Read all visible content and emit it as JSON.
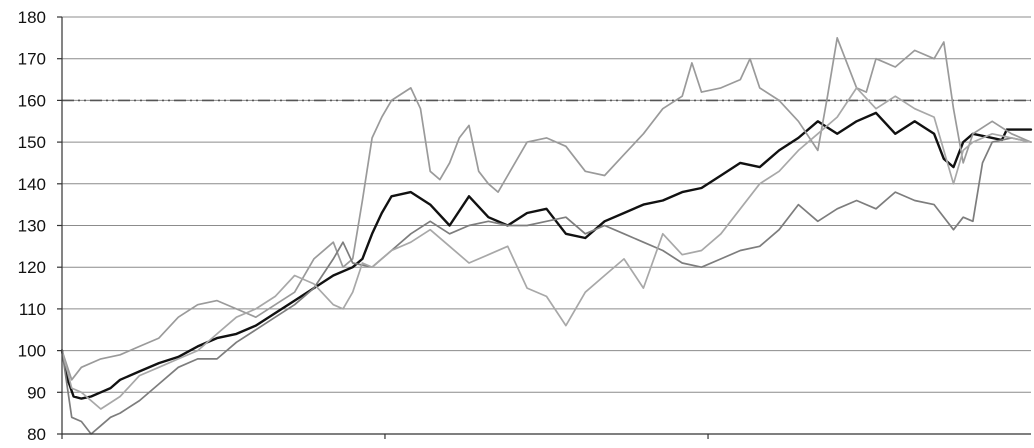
{
  "chart_data": {
    "type": "line",
    "ylim": [
      80,
      180
    ],
    "xlim": [
      0,
      1
    ],
    "ytick_labels": [
      "80",
      "90",
      "100",
      "110",
      "120",
      "130",
      "140",
      "150",
      "160",
      "170",
      "180"
    ],
    "grid": {
      "horizontal": true,
      "vertical": false
    },
    "x_ticks": [
      0,
      0.3333,
      0.6667
    ],
    "reference_line": {
      "y": 160,
      "style": "dash-dot-dot",
      "color": "#555555"
    },
    "series": [
      {
        "style": "thick",
        "color": "#111111",
        "points": [
          [
            0.0,
            100.0
          ],
          [
            0.006,
            93.0
          ],
          [
            0.012,
            89.0
          ],
          [
            0.02,
            88.5
          ],
          [
            0.03,
            89.0
          ],
          [
            0.04,
            90.0
          ],
          [
            0.05,
            91.0
          ],
          [
            0.06,
            93.0
          ],
          [
            0.08,
            95.0
          ],
          [
            0.1,
            97.0
          ],
          [
            0.12,
            98.5
          ],
          [
            0.14,
            101.0
          ],
          [
            0.16,
            103.0
          ],
          [
            0.18,
            104.0
          ],
          [
            0.2,
            106.0
          ],
          [
            0.22,
            109.0
          ],
          [
            0.24,
            112.0
          ],
          [
            0.26,
            115.0
          ],
          [
            0.28,
            118.0
          ],
          [
            0.3,
            120.0
          ],
          [
            0.31,
            122.0
          ],
          [
            0.32,
            128.0
          ],
          [
            0.33,
            133.0
          ],
          [
            0.34,
            137.0
          ],
          [
            0.36,
            138.0
          ],
          [
            0.38,
            135.0
          ],
          [
            0.4,
            130.0
          ],
          [
            0.42,
            137.0
          ],
          [
            0.44,
            132.0
          ],
          [
            0.46,
            130.0
          ],
          [
            0.48,
            133.0
          ],
          [
            0.5,
            134.0
          ],
          [
            0.52,
            128.0
          ],
          [
            0.54,
            127.0
          ],
          [
            0.56,
            131.0
          ],
          [
            0.58,
            133.0
          ],
          [
            0.6,
            135.0
          ],
          [
            0.62,
            136.0
          ],
          [
            0.64,
            138.0
          ],
          [
            0.66,
            139.0
          ],
          [
            0.68,
            142.0
          ],
          [
            0.7,
            145.0
          ],
          [
            0.72,
            144.0
          ],
          [
            0.74,
            148.0
          ],
          [
            0.76,
            151.0
          ],
          [
            0.78,
            155.0
          ],
          [
            0.8,
            152.0
          ],
          [
            0.82,
            155.0
          ],
          [
            0.84,
            157.0
          ],
          [
            0.86,
            152.0
          ],
          [
            0.88,
            155.0
          ],
          [
            0.9,
            152.0
          ],
          [
            0.91,
            146.0
          ],
          [
            0.92,
            144.0
          ],
          [
            0.93,
            150.0
          ],
          [
            0.94,
            152.0
          ],
          [
            0.96,
            151.0
          ],
          [
            0.97,
            150.5
          ],
          [
            0.975,
            153.0
          ],
          [
            1.0,
            153.0
          ]
        ]
      },
      {
        "style": "thin",
        "color": "#9a9a9a",
        "points": [
          [
            0.0,
            100.0
          ],
          [
            0.01,
            93.0
          ],
          [
            0.02,
            96.0
          ],
          [
            0.04,
            98.0
          ],
          [
            0.06,
            99.0
          ],
          [
            0.08,
            101.0
          ],
          [
            0.1,
            103.0
          ],
          [
            0.12,
            108.0
          ],
          [
            0.14,
            111.0
          ],
          [
            0.16,
            112.0
          ],
          [
            0.18,
            110.0
          ],
          [
            0.2,
            108.0
          ],
          [
            0.22,
            111.0
          ],
          [
            0.24,
            114.0
          ],
          [
            0.26,
            122.0
          ],
          [
            0.28,
            126.0
          ],
          [
            0.29,
            120.0
          ],
          [
            0.3,
            122.0
          ],
          [
            0.31,
            136.0
          ],
          [
            0.32,
            151.0
          ],
          [
            0.33,
            156.0
          ],
          [
            0.34,
            160.0
          ],
          [
            0.36,
            163.0
          ],
          [
            0.37,
            158.0
          ],
          [
            0.38,
            143.0
          ],
          [
            0.39,
            141.0
          ],
          [
            0.4,
            145.0
          ],
          [
            0.41,
            151.0
          ],
          [
            0.42,
            154.0
          ],
          [
            0.43,
            143.0
          ],
          [
            0.44,
            140.0
          ],
          [
            0.45,
            138.0
          ],
          [
            0.46,
            142.0
          ],
          [
            0.48,
            150.0
          ],
          [
            0.5,
            151.0
          ],
          [
            0.52,
            149.0
          ],
          [
            0.54,
            143.0
          ],
          [
            0.56,
            142.0
          ],
          [
            0.58,
            147.0
          ],
          [
            0.6,
            152.0
          ],
          [
            0.62,
            158.0
          ],
          [
            0.64,
            161.0
          ],
          [
            0.65,
            169.0
          ],
          [
            0.66,
            162.0
          ],
          [
            0.68,
            163.0
          ],
          [
            0.7,
            165.0
          ],
          [
            0.71,
            170.0
          ],
          [
            0.72,
            163.0
          ],
          [
            0.74,
            160.0
          ],
          [
            0.76,
            155.0
          ],
          [
            0.78,
            148.0
          ],
          [
            0.79,
            161.0
          ],
          [
            0.8,
            175.0
          ],
          [
            0.82,
            163.0
          ],
          [
            0.83,
            162.0
          ],
          [
            0.84,
            170.0
          ],
          [
            0.86,
            168.0
          ],
          [
            0.88,
            172.0
          ],
          [
            0.9,
            170.0
          ],
          [
            0.91,
            174.0
          ],
          [
            0.92,
            158.0
          ],
          [
            0.93,
            145.0
          ],
          [
            0.94,
            152.0
          ],
          [
            0.96,
            155.0
          ],
          [
            0.98,
            152.0
          ],
          [
            1.0,
            150.0
          ]
        ]
      },
      {
        "style": "thin",
        "color": "#7d7d7d",
        "points": [
          [
            0.0,
            100.0
          ],
          [
            0.01,
            84.0
          ],
          [
            0.02,
            83.0
          ],
          [
            0.03,
            80.0
          ],
          [
            0.04,
            82.0
          ],
          [
            0.05,
            84.0
          ],
          [
            0.06,
            85.0
          ],
          [
            0.08,
            88.0
          ],
          [
            0.1,
            92.0
          ],
          [
            0.12,
            96.0
          ],
          [
            0.14,
            98.0
          ],
          [
            0.16,
            98.0
          ],
          [
            0.18,
            102.0
          ],
          [
            0.2,
            105.0
          ],
          [
            0.22,
            108.0
          ],
          [
            0.24,
            111.0
          ],
          [
            0.26,
            115.0
          ],
          [
            0.28,
            122.0
          ],
          [
            0.29,
            126.0
          ],
          [
            0.3,
            121.0
          ],
          [
            0.32,
            120.0
          ],
          [
            0.34,
            124.0
          ],
          [
            0.36,
            128.0
          ],
          [
            0.38,
            131.0
          ],
          [
            0.4,
            128.0
          ],
          [
            0.42,
            130.0
          ],
          [
            0.44,
            131.0
          ],
          [
            0.46,
            130.0
          ],
          [
            0.48,
            130.0
          ],
          [
            0.5,
            131.0
          ],
          [
            0.52,
            132.0
          ],
          [
            0.54,
            128.0
          ],
          [
            0.56,
            130.0
          ],
          [
            0.58,
            128.0
          ],
          [
            0.6,
            126.0
          ],
          [
            0.62,
            124.0
          ],
          [
            0.64,
            121.0
          ],
          [
            0.66,
            120.0
          ],
          [
            0.68,
            122.0
          ],
          [
            0.7,
            124.0
          ],
          [
            0.72,
            125.0
          ],
          [
            0.74,
            129.0
          ],
          [
            0.76,
            135.0
          ],
          [
            0.78,
            131.0
          ],
          [
            0.8,
            134.0
          ],
          [
            0.82,
            136.0
          ],
          [
            0.84,
            134.0
          ],
          [
            0.86,
            138.0
          ],
          [
            0.88,
            136.0
          ],
          [
            0.9,
            135.0
          ],
          [
            0.92,
            129.0
          ],
          [
            0.93,
            132.0
          ],
          [
            0.94,
            131.0
          ],
          [
            0.95,
            145.0
          ],
          [
            0.96,
            150.0
          ],
          [
            0.98,
            151.0
          ],
          [
            1.0,
            150.0
          ]
        ]
      },
      {
        "style": "thin",
        "color": "#a8a8a8",
        "points": [
          [
            0.0,
            100.0
          ],
          [
            0.01,
            91.0
          ],
          [
            0.02,
            90.0
          ],
          [
            0.04,
            86.0
          ],
          [
            0.06,
            89.0
          ],
          [
            0.08,
            94.0
          ],
          [
            0.1,
            96.0
          ],
          [
            0.12,
            98.0
          ],
          [
            0.14,
            100.0
          ],
          [
            0.16,
            104.0
          ],
          [
            0.18,
            108.0
          ],
          [
            0.2,
            110.0
          ],
          [
            0.22,
            113.0
          ],
          [
            0.24,
            118.0
          ],
          [
            0.26,
            116.0
          ],
          [
            0.28,
            111.0
          ],
          [
            0.29,
            110.0
          ],
          [
            0.3,
            114.0
          ],
          [
            0.31,
            121.0
          ],
          [
            0.32,
            120.0
          ],
          [
            0.34,
            124.0
          ],
          [
            0.36,
            126.0
          ],
          [
            0.38,
            129.0
          ],
          [
            0.4,
            125.0
          ],
          [
            0.42,
            121.0
          ],
          [
            0.44,
            123.0
          ],
          [
            0.46,
            125.0
          ],
          [
            0.48,
            115.0
          ],
          [
            0.5,
            113.0
          ],
          [
            0.52,
            106.0
          ],
          [
            0.54,
            114.0
          ],
          [
            0.56,
            118.0
          ],
          [
            0.58,
            122.0
          ],
          [
            0.6,
            115.0
          ],
          [
            0.62,
            128.0
          ],
          [
            0.64,
            123.0
          ],
          [
            0.66,
            124.0
          ],
          [
            0.68,
            128.0
          ],
          [
            0.7,
            134.0
          ],
          [
            0.72,
            140.0
          ],
          [
            0.74,
            143.0
          ],
          [
            0.76,
            148.0
          ],
          [
            0.78,
            152.0
          ],
          [
            0.8,
            156.0
          ],
          [
            0.82,
            163.0
          ],
          [
            0.84,
            158.0
          ],
          [
            0.86,
            161.0
          ],
          [
            0.88,
            158.0
          ],
          [
            0.9,
            156.0
          ],
          [
            0.91,
            148.0
          ],
          [
            0.92,
            140.0
          ],
          [
            0.93,
            148.0
          ],
          [
            0.94,
            150.0
          ],
          [
            0.96,
            152.0
          ],
          [
            0.98,
            151.0
          ],
          [
            1.0,
            150.0
          ]
        ]
      }
    ]
  }
}
